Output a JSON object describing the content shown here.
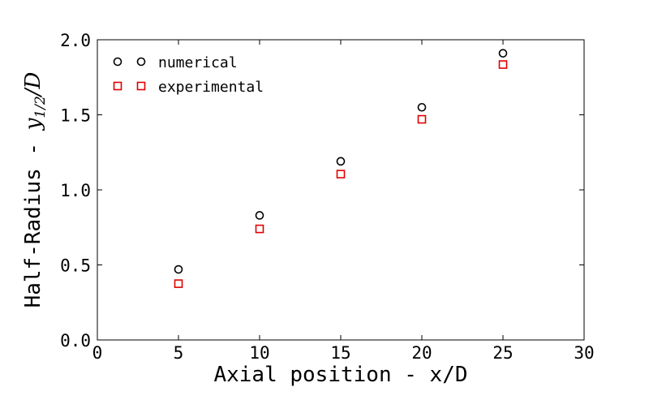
{
  "chart_data": {
    "type": "scatter",
    "x": [
      5,
      10,
      15,
      20,
      25
    ],
    "series": [
      {
        "name": "numerical",
        "marker": "circle",
        "color": "#000000",
        "values": [
          0.47,
          0.83,
          1.19,
          1.55,
          1.91
        ]
      },
      {
        "name": "experimental",
        "marker": "square",
        "color": "#e00000",
        "values": [
          0.375,
          0.74,
          1.105,
          1.47,
          1.835
        ]
      }
    ],
    "xlabel": "Axial position - x/D",
    "ylabel_text": "Half-Radius - ",
    "ylabel_math": "y",
    "ylabel_sub": "1/2",
    "ylabel_tail": "/D",
    "xlim": [
      0,
      30
    ],
    "ylim": [
      0.0,
      2.0
    ],
    "xticks": [
      "0",
      "5",
      "10",
      "15",
      "20",
      "25",
      "30"
    ],
    "yticks": [
      "0.0",
      "0.5",
      "1.0",
      "1.5",
      "2.0"
    ],
    "legend_position": "top-left",
    "grid": false
  }
}
